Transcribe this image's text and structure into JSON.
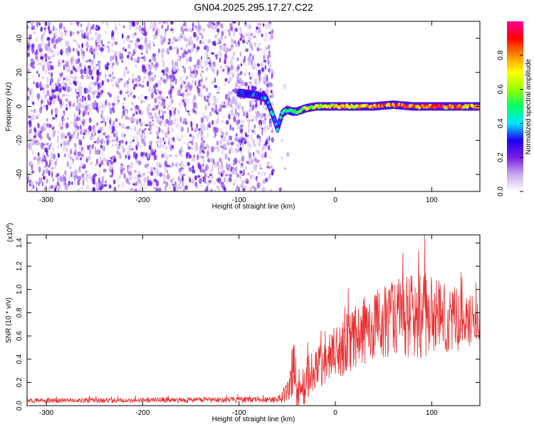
{
  "title": "GN04.2025.295.17.27.C22",
  "chart_data": [
    {
      "type": "heatmap",
      "name": "spectrogram",
      "xlabel": "Height of straight line (km)",
      "ylabel": "Frequency (Hz)",
      "xlim": [
        -320,
        150
      ],
      "ylim": [
        -50,
        50
      ],
      "xticks": [
        -300,
        -200,
        -100,
        0,
        100
      ],
      "yticks": [
        -40,
        -20,
        0,
        20,
        40
      ],
      "xtick_labels": [
        "-300",
        "-200",
        "-100",
        "0",
        "100"
      ],
      "ytick_labels": [
        "-40",
        "-20",
        "0",
        "20",
        "40"
      ],
      "noise_region_x": [
        -320,
        -65
      ],
      "signal_track": [
        {
          "x": -100,
          "freq": 8,
          "amp": 0.3
        },
        {
          "x": -85,
          "freq": 7,
          "amp": 0.35
        },
        {
          "x": -72,
          "freq": 5,
          "amp": 0.4
        },
        {
          "x": -65,
          "freq": -5,
          "amp": 0.45
        },
        {
          "x": -60,
          "freq": -13,
          "amp": 0.4
        },
        {
          "x": -55,
          "freq": -4,
          "amp": 0.5
        },
        {
          "x": -50,
          "freq": -2,
          "amp": 0.5
        },
        {
          "x": -45,
          "freq": -3,
          "amp": 0.55
        },
        {
          "x": -40,
          "freq": -3,
          "amp": 0.55
        },
        {
          "x": -30,
          "freq": -1,
          "amp": 0.6
        },
        {
          "x": -20,
          "freq": 0,
          "amp": 0.65
        },
        {
          "x": 0,
          "freq": 0,
          "amp": 0.75
        },
        {
          "x": 20,
          "freq": 0,
          "amp": 0.8
        },
        {
          "x": 40,
          "freq": 0,
          "amp": 0.85
        },
        {
          "x": 60,
          "freq": 1,
          "amp": 0.9
        },
        {
          "x": 80,
          "freq": 0,
          "amp": 0.9
        },
        {
          "x": 100,
          "freq": 0,
          "amp": 0.95
        },
        {
          "x": 120,
          "freq": 0,
          "amp": 0.9
        },
        {
          "x": 140,
          "freq": 0,
          "amp": 0.85
        },
        {
          "x": 150,
          "freq": 0,
          "amp": 0.85
        }
      ],
      "colorbar": {
        "label": "Normalized spectral amplitude",
        "range": [
          0.0,
          1.0
        ],
        "ticks": [
          0.0,
          0.2,
          0.4,
          0.6,
          0.8
        ],
        "tick_labels": [
          "0.0",
          "0.2",
          "0.4",
          "0.6",
          "0.8"
        ],
        "colormap": [
          "#ffffff",
          "#c8a8f0",
          "#7a1ee6",
          "#1e00f0",
          "#00e6ff",
          "#00ff64",
          "#96ff00",
          "#ffff00",
          "#ff8c00",
          "#ff0000",
          "#ff0096"
        ]
      }
    },
    {
      "type": "line",
      "name": "snr",
      "xlabel": "Height of straight line (km)",
      "ylabel": "SNR (10 * v/v)",
      "multiplier_label": "(x10",
      "multiplier_exp": "4",
      "multiplier_close": ")",
      "xlim": [
        -320,
        150
      ],
      "ylim": [
        0,
        1.47
      ],
      "xticks": [
        -300,
        -200,
        -100,
        0,
        100
      ],
      "yticks": [
        0.0,
        0.2,
        0.4,
        0.6,
        0.8,
        1.0,
        1.2,
        1.4
      ],
      "xtick_labels": [
        "-300",
        "-200",
        "-100",
        "0",
        "100"
      ],
      "ytick_labels": [
        "0.0",
        "0.2",
        "0.4",
        "0.6",
        "0.8",
        "1.0",
        "1.2",
        "1.4"
      ],
      "color": "#e83030",
      "envelope": [
        {
          "x": -320,
          "base": 0.04,
          "spread": 0.03
        },
        {
          "x": -60,
          "base": 0.05,
          "spread": 0.04
        },
        {
          "x": -48,
          "base": 0.12,
          "spread": 0.2
        },
        {
          "x": -44,
          "base": 0.35,
          "spread": 0.5
        },
        {
          "x": -40,
          "base": 0.1,
          "spread": 0.3
        },
        {
          "x": -30,
          "base": 0.2,
          "spread": 0.3
        },
        {
          "x": -10,
          "base": 0.35,
          "spread": 0.35
        },
        {
          "x": 10,
          "base": 0.5,
          "spread": 0.4
        },
        {
          "x": 30,
          "base": 0.62,
          "spread": 0.45
        },
        {
          "x": 60,
          "base": 0.72,
          "spread": 0.5
        },
        {
          "x": 95,
          "base": 0.75,
          "spread": 0.6
        },
        {
          "x": 120,
          "base": 0.72,
          "spread": 0.45
        },
        {
          "x": 150,
          "base": 0.7,
          "spread": 0.3
        }
      ],
      "peak": {
        "x": 93,
        "y": 1.47
      }
    }
  ]
}
